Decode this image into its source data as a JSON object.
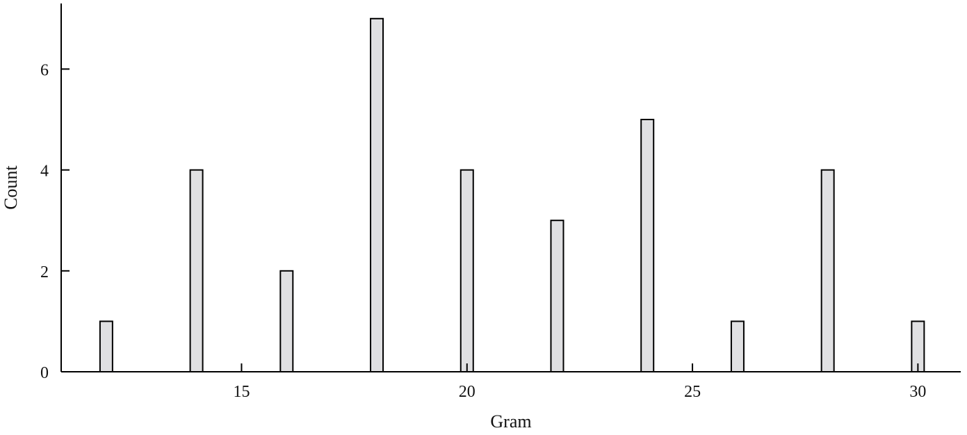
{
  "chart_data": {
    "type": "bar",
    "title": "",
    "xlabel": "Gram",
    "ylabel": "Count",
    "x": [
      12,
      14,
      16,
      18,
      20,
      22,
      24,
      26,
      28,
      30
    ],
    "values": [
      1,
      4,
      2,
      7,
      4,
      3,
      5,
      1,
      4,
      1
    ],
    "xlim": [
      11,
      30.95
    ],
    "ylim": [
      0,
      7.3
    ],
    "xticks": [
      15,
      20,
      25,
      30
    ],
    "yticks": [
      0,
      2,
      4,
      6
    ],
    "grid": false,
    "bar_color": "#e0e0e2",
    "edge_color": "#000000"
  }
}
